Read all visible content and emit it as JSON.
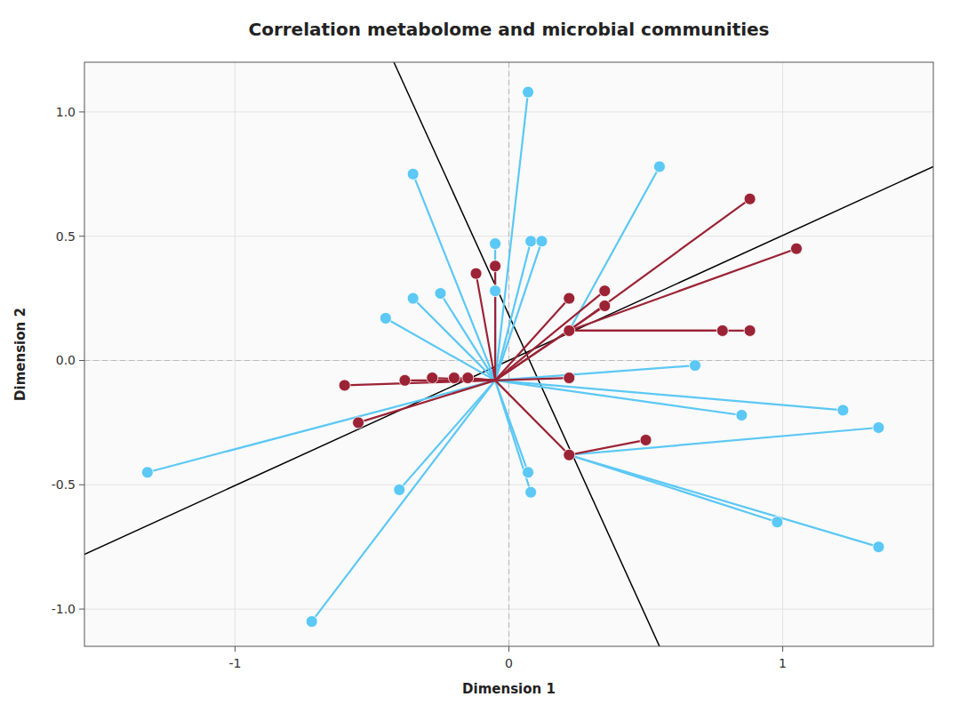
{
  "chart_data": {
    "type": "scatter",
    "title": "Correlation metabolome and microbial communities",
    "xlabel": "Dimension 1",
    "ylabel": "Dimension 2",
    "xlim": [
      -1.55,
      1.55
    ],
    "ylim": [
      -1.15,
      1.2
    ],
    "xticks": [
      -1,
      0,
      1
    ],
    "yticks": [
      {
        "value": -1.0,
        "label": "-1.0"
      },
      {
        "value": -0.5,
        "label": "-0.5"
      },
      {
        "value": 0.0,
        "label": "0.0"
      },
      {
        "value": 0.5,
        "label": "0.5"
      },
      {
        "value": 1.0,
        "label": "1.0"
      }
    ],
    "crosshair": {
      "x": 0,
      "y": 0,
      "color": "#BBBBBB",
      "line_style": "dashed"
    },
    "lines": [
      {
        "color": "#000000",
        "x": [
          -1.55,
          1.55
        ],
        "values": [
          -0.78,
          0.78
        ]
      },
      {
        "color": "#000000",
        "x": [
          -0.42,
          0.55
        ],
        "values": [
          1.2,
          -1.15
        ]
      }
    ],
    "series": [
      {
        "color": "#5BC8F5",
        "x": [
          0.07,
          -0.35,
          0.55,
          -1.32,
          -0.45,
          -0.35,
          -0.25,
          0.08,
          -0.05,
          0.12,
          -0.05,
          -0.4,
          0.08,
          0.07,
          -0.72,
          0.68,
          0.85,
          1.22,
          1.35,
          0.98,
          1.35
        ],
        "values": [
          1.08,
          0.75,
          0.78,
          -0.45,
          0.17,
          0.25,
          0.27,
          0.48,
          0.47,
          0.48,
          0.28,
          -0.52,
          -0.53,
          -0.45,
          -1.05,
          -0.02,
          -0.22,
          -0.2,
          -0.27,
          -0.65,
          -0.75
        ],
        "segments": [
          [
            [
              0.07,
              1.08
            ],
            [
              -0.05,
              -0.08
            ]
          ],
          [
            [
              -0.35,
              0.75
            ],
            [
              -0.05,
              -0.08
            ]
          ],
          [
            [
              0.55,
              0.78
            ],
            [
              0.22,
              0.12
            ]
          ],
          [
            [
              -1.32,
              -0.45
            ],
            [
              -0.05,
              -0.08
            ]
          ],
          [
            [
              -0.45,
              0.17
            ],
            [
              -0.05,
              -0.08
            ]
          ],
          [
            [
              -0.35,
              0.25
            ],
            [
              -0.05,
              -0.08
            ]
          ],
          [
            [
              -0.25,
              0.27
            ],
            [
              -0.05,
              -0.08
            ]
          ],
          [
            [
              0.08,
              0.48
            ],
            [
              -0.05,
              -0.08
            ]
          ],
          [
            [
              -0.05,
              0.47
            ],
            [
              -0.05,
              -0.08
            ]
          ],
          [
            [
              0.12,
              0.48
            ],
            [
              -0.05,
              -0.08
            ]
          ],
          [
            [
              -0.05,
              0.28
            ],
            [
              -0.05,
              -0.08
            ]
          ],
          [
            [
              -0.4,
              -0.52
            ],
            [
              -0.05,
              -0.08
            ]
          ],
          [
            [
              0.08,
              -0.53
            ],
            [
              -0.05,
              -0.08
            ]
          ],
          [
            [
              0.07,
              -0.45
            ],
            [
              -0.05,
              -0.08
            ]
          ],
          [
            [
              -0.72,
              -1.05
            ],
            [
              -0.05,
              -0.08
            ]
          ],
          [
            [
              0.68,
              -0.02
            ],
            [
              -0.05,
              -0.08
            ]
          ],
          [
            [
              0.85,
              -0.22
            ],
            [
              -0.05,
              -0.08
            ]
          ],
          [
            [
              1.22,
              -0.2
            ],
            [
              -0.05,
              -0.08
            ]
          ],
          [
            [
              1.35,
              -0.27
            ],
            [
              0.22,
              -0.38
            ]
          ],
          [
            [
              0.98,
              -0.65
            ],
            [
              0.22,
              -0.38
            ]
          ],
          [
            [
              1.35,
              -0.75
            ],
            [
              0.22,
              -0.38
            ]
          ]
        ]
      },
      {
        "color": "#9B2335",
        "x": [
          -0.05,
          -0.12,
          -0.15,
          -0.2,
          -0.28,
          -0.38,
          -0.6,
          -0.55,
          0.22,
          0.35,
          0.35,
          0.22,
          0.22,
          0.22,
          0.5,
          0.88,
          0.78,
          0.88,
          1.05
        ],
        "values": [
          0.38,
          0.35,
          -0.07,
          -0.07,
          -0.07,
          -0.08,
          -0.1,
          -0.25,
          0.25,
          0.28,
          0.22,
          0.12,
          -0.07,
          -0.38,
          -0.32,
          0.12,
          0.12,
          0.65,
          0.45
        ],
        "segments": [
          [
            [
              -0.05,
              0.38
            ],
            [
              -0.05,
              -0.08
            ]
          ],
          [
            [
              -0.12,
              0.35
            ],
            [
              -0.05,
              -0.08
            ]
          ],
          [
            [
              -0.15,
              -0.07
            ],
            [
              -0.05,
              -0.08
            ]
          ],
          [
            [
              -0.2,
              -0.07
            ],
            [
              -0.05,
              -0.08
            ]
          ],
          [
            [
              -0.28,
              -0.07
            ],
            [
              -0.05,
              -0.08
            ]
          ],
          [
            [
              -0.38,
              -0.08
            ],
            [
              -0.05,
              -0.08
            ]
          ],
          [
            [
              -0.6,
              -0.1
            ],
            [
              -0.05,
              -0.08
            ]
          ],
          [
            [
              -0.55,
              -0.25
            ],
            [
              -0.05,
              -0.08
            ]
          ],
          [
            [
              0.22,
              0.25
            ],
            [
              -0.05,
              -0.08
            ]
          ],
          [
            [
              0.35,
              0.28
            ],
            [
              -0.05,
              -0.08
            ]
          ],
          [
            [
              0.35,
              0.22
            ],
            [
              -0.05,
              -0.08
            ]
          ],
          [
            [
              0.22,
              0.12
            ],
            [
              -0.05,
              -0.08
            ]
          ],
          [
            [
              0.22,
              -0.07
            ],
            [
              -0.05,
              -0.08
            ]
          ],
          [
            [
              0.22,
              -0.38
            ],
            [
              -0.05,
              -0.08
            ]
          ],
          [
            [
              0.5,
              -0.32
            ],
            [
              0.22,
              -0.38
            ]
          ],
          [
            [
              0.88,
              0.12
            ],
            [
              0.22,
              0.12
            ]
          ],
          [
            [
              0.78,
              0.12
            ],
            [
              0.22,
              0.12
            ]
          ],
          [
            [
              0.88,
              0.65
            ],
            [
              0.22,
              0.12
            ]
          ],
          [
            [
              1.05,
              0.45
            ],
            [
              0.22,
              0.12
            ]
          ]
        ]
      }
    ]
  }
}
